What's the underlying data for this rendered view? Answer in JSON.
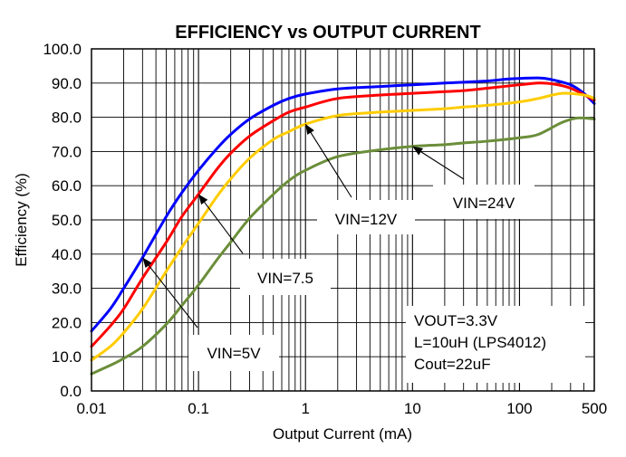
{
  "chart_data": {
    "type": "line",
    "title": "EFFICIENCY vs OUTPUT CURRENT",
    "xlabel": "Output Current (mA)",
    "ylabel": "Efficiency (%)",
    "xscale": "log",
    "xlim": [
      0.01,
      500
    ],
    "ylim": [
      0,
      100
    ],
    "grid": true,
    "x_ticks": [
      {
        "value": 0.01,
        "label": "0.01"
      },
      {
        "value": 0.1,
        "label": "0.1"
      },
      {
        "value": 1,
        "label": "1"
      },
      {
        "value": 10,
        "label": "10"
      },
      {
        "value": 100,
        "label": "100"
      },
      {
        "value": 500,
        "label": "500"
      }
    ],
    "y_ticks": [
      {
        "value": 0,
        "label": "0.0"
      },
      {
        "value": 10,
        "label": "10.0"
      },
      {
        "value": 20,
        "label": "20.0"
      },
      {
        "value": 30,
        "label": "30.0"
      },
      {
        "value": 40,
        "label": "40.0"
      },
      {
        "value": 50,
        "label": "50.0"
      },
      {
        "value": 60,
        "label": "60.0"
      },
      {
        "value": 70,
        "label": "70.0"
      },
      {
        "value": 80,
        "label": "80.0"
      },
      {
        "value": 90,
        "label": "90.0"
      },
      {
        "value": 100,
        "label": "100.0"
      }
    ],
    "series": [
      {
        "name": "VIN=5V",
        "color": "#0000ff",
        "points": [
          [
            0.01,
            17.5
          ],
          [
            0.015,
            24
          ],
          [
            0.02,
            30
          ],
          [
            0.03,
            39
          ],
          [
            0.05,
            51
          ],
          [
            0.07,
            58
          ],
          [
            0.1,
            64.5
          ],
          [
            0.15,
            71
          ],
          [
            0.2,
            75
          ],
          [
            0.3,
            79.5
          ],
          [
            0.5,
            83.5
          ],
          [
            0.7,
            85.5
          ],
          [
            1,
            86.8
          ],
          [
            2,
            88.3
          ],
          [
            5,
            89
          ],
          [
            10,
            89.5
          ],
          [
            20,
            90
          ],
          [
            50,
            90.6
          ],
          [
            80,
            91.2
          ],
          [
            150,
            91.5
          ],
          [
            200,
            91
          ],
          [
            300,
            89.5
          ],
          [
            400,
            87
          ],
          [
            500,
            84
          ]
        ]
      },
      {
        "name": "VIN=7.5",
        "color": "#ff0000",
        "points": [
          [
            0.01,
            13
          ],
          [
            0.015,
            19
          ],
          [
            0.02,
            24
          ],
          [
            0.03,
            33
          ],
          [
            0.05,
            43.5
          ],
          [
            0.07,
            51
          ],
          [
            0.1,
            57.5
          ],
          [
            0.15,
            65
          ],
          [
            0.2,
            69.5
          ],
          [
            0.3,
            74.5
          ],
          [
            0.5,
            79
          ],
          [
            0.7,
            81.5
          ],
          [
            1,
            83
          ],
          [
            2,
            85.5
          ],
          [
            5,
            86.5
          ],
          [
            10,
            87
          ],
          [
            20,
            87.5
          ],
          [
            30,
            87.8
          ],
          [
            50,
            88.5
          ],
          [
            100,
            89.5
          ],
          [
            150,
            90
          ],
          [
            200,
            89.8
          ],
          [
            300,
            88.5
          ],
          [
            500,
            85
          ]
        ]
      },
      {
        "name": "VIN=12V",
        "color": "#ffcc00",
        "points": [
          [
            0.01,
            9
          ],
          [
            0.015,
            13
          ],
          [
            0.02,
            17
          ],
          [
            0.03,
            24
          ],
          [
            0.05,
            35
          ],
          [
            0.07,
            42
          ],
          [
            0.1,
            49
          ],
          [
            0.15,
            57
          ],
          [
            0.2,
            62
          ],
          [
            0.3,
            68
          ],
          [
            0.5,
            73.5
          ],
          [
            0.7,
            75.8
          ],
          [
            1,
            78
          ],
          [
            2,
            80.5
          ],
          [
            5,
            81.5
          ],
          [
            10,
            82
          ],
          [
            20,
            82.5
          ],
          [
            30,
            83
          ],
          [
            50,
            83.5
          ],
          [
            100,
            84.5
          ],
          [
            150,
            85.5
          ],
          [
            250,
            87
          ],
          [
            400,
            86.5
          ],
          [
            500,
            85.5
          ]
        ]
      },
      {
        "name": "VIN=24V",
        "color": "#6b8e3a",
        "points": [
          [
            0.01,
            5
          ],
          [
            0.015,
            7.5
          ],
          [
            0.02,
            9.5
          ],
          [
            0.03,
            13
          ],
          [
            0.05,
            19.5
          ],
          [
            0.07,
            25
          ],
          [
            0.1,
            31
          ],
          [
            0.15,
            38.5
          ],
          [
            0.2,
            43.5
          ],
          [
            0.3,
            50.5
          ],
          [
            0.5,
            57.5
          ],
          [
            0.7,
            61.5
          ],
          [
            1,
            64.5
          ],
          [
            2,
            68.5
          ],
          [
            5,
            70.5
          ],
          [
            10,
            71.5
          ],
          [
            20,
            72
          ],
          [
            30,
            72.5
          ],
          [
            50,
            73
          ],
          [
            100,
            74
          ],
          [
            150,
            75
          ],
          [
            250,
            78.5
          ],
          [
            350,
            79.8
          ],
          [
            500,
            79.5
          ]
        ]
      }
    ],
    "annotations": [
      {
        "text": "VIN=5V",
        "arrow_to": [
          0.03,
          39
        ]
      },
      {
        "text": "VIN=7.5",
        "arrow_to": [
          0.1,
          57.5
        ]
      },
      {
        "text": "VIN=12V",
        "arrow_to": [
          1,
          78
        ]
      },
      {
        "text": "VIN=24V",
        "arrow_to": [
          10,
          71.5
        ]
      }
    ],
    "info_box": [
      "VOUT=3.3V",
      "L=10uH (LPS4012)",
      "Cout=22uF"
    ]
  }
}
